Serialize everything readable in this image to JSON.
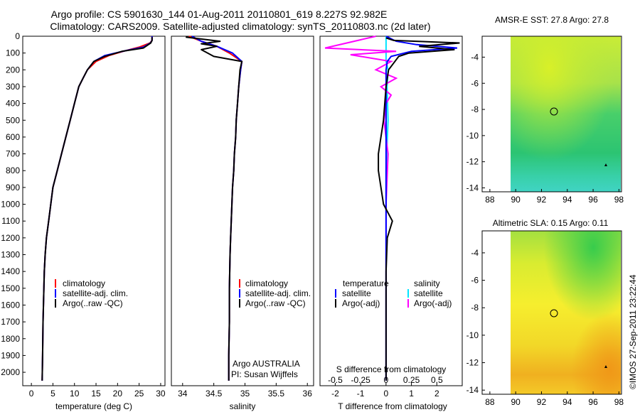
{
  "title": {
    "line1": "Argo profile: CS 5901630_144 01-Aug-2011 20110801_619 8.227S 92.982E",
    "line2": "Climatology: CARS2009. Satellite-adjusted climatology: synTS_20110803.nc (2d later)"
  },
  "footer_stamp": "©IMOS 27-Sep-2011 23:22:44",
  "colors": {
    "climatology": "#ff0000",
    "satellite": "#0000ff",
    "argo": "#000000",
    "s_satellite": "#00e5ff",
    "s_argo": "#ff00ff"
  },
  "depth_ticks": [
    "0",
    "100",
    "200",
    "300",
    "400",
    "500",
    "600",
    "700",
    "800",
    "900",
    "1000",
    "1100",
    "1200",
    "1300",
    "1400",
    "1500",
    "1600",
    "1700",
    "1800",
    "1900",
    "2000"
  ],
  "panel1": {
    "xlabel": "temperature (deg C)",
    "xticks": [
      "0",
      "5",
      "10",
      "15",
      "20",
      "25",
      "30"
    ],
    "legend": [
      "climatology",
      "satellite-adj. clim.",
      "Argo(..raw -QC)"
    ]
  },
  "panel2": {
    "xlabel": "salinity",
    "xticks": [
      "34",
      "34.5",
      "35",
      "35.5",
      "36"
    ],
    "legend": [
      "climatology",
      "satellite-adj. clim.",
      "Argo(..raw -QC)"
    ],
    "annotation1": "Argo AUSTRALIA",
    "annotation2": "PI: Susan Wijffels"
  },
  "panel3": {
    "xlabel": "T difference from climatology",
    "toplabel": "S difference from climatology",
    "xticks": [
      "-2",
      "-1",
      "0",
      "1",
      "2"
    ],
    "sticks": [
      "-0.5",
      "-0.25",
      "0",
      "0.25",
      "0.5"
    ],
    "legend_head_t": "temperature",
    "legend_head_s": "salinity",
    "legend_t": [
      "satellite",
      "Argo(-adj)"
    ],
    "legend_s": [
      "satellite",
      "Argo(-adj)"
    ]
  },
  "map1": {
    "title": "AMSR-E SST: 27.8 Argo: 27.8",
    "yticks": [
      "-4",
      "-6",
      "-8",
      "-10",
      "-12",
      "-14"
    ],
    "xticks": [
      "88",
      "90",
      "92",
      "94",
      "96",
      "98"
    ]
  },
  "map2": {
    "title": "Altimetric SLA: 0.15 Argo: 0.11",
    "yticks": [
      "-4",
      "-6",
      "-8",
      "-10",
      "-12",
      "-14"
    ],
    "xticks": [
      "88",
      "90",
      "92",
      "94",
      "96",
      "98"
    ]
  },
  "chart_data": [
    {
      "type": "line",
      "xlabel": "temperature (deg C)",
      "ylabel": "",
      "xlim": [
        -2,
        31
      ],
      "ylim": [
        2080,
        0
      ],
      "series": [
        {
          "name": "climatology",
          "x": [
            28,
            28,
            27.5,
            25,
            22,
            18,
            15,
            13,
            12,
            11,
            10,
            9,
            8,
            7,
            6,
            5,
            4.5,
            4,
            3.5,
            3.2,
            3,
            2.8,
            2.7,
            2.6,
            2.5
          ],
          "y": [
            0,
            25,
            40,
            65,
            85,
            115,
            150,
            200,
            250,
            300,
            400,
            500,
            600,
            700,
            800,
            900,
            1000,
            1100,
            1200,
            1300,
            1400,
            1600,
            1700,
            1900,
            2050
          ]
        },
        {
          "name": "satellite-adj. clim.",
          "x": [
            28,
            28,
            27.6,
            26,
            22,
            17,
            14.5,
            13,
            12,
            11,
            10,
            9,
            8,
            7,
            6,
            5,
            4.5,
            4,
            3.5,
            3.2,
            3,
            2.8,
            2.7,
            2.6,
            2.5
          ],
          "y": [
            0,
            25,
            40,
            65,
            85,
            115,
            150,
            200,
            250,
            300,
            400,
            500,
            600,
            700,
            800,
            900,
            1000,
            1100,
            1200,
            1300,
            1400,
            1600,
            1700,
            1900,
            2050
          ]
        },
        {
          "name": "Argo(..raw -QC)",
          "x": [
            28,
            28,
            27.7,
            26,
            21,
            17,
            14.5,
            13,
            12,
            11,
            10,
            9,
            8,
            7,
            6,
            5,
            4.5,
            4,
            3.5,
            3.2,
            3,
            2.8,
            2.7,
            2.6,
            2.5
          ],
          "y": [
            5,
            25,
            40,
            70,
            90,
            120,
            150,
            200,
            250,
            300,
            400,
            500,
            600,
            700,
            800,
            900,
            1000,
            1100,
            1200,
            1300,
            1400,
            1600,
            1700,
            1900,
            2050
          ]
        }
      ]
    },
    {
      "type": "line",
      "xlabel": "salinity",
      "ylabel": "",
      "xlim": [
        33.82,
        36.1
      ],
      "ylim": [
        2080,
        0
      ],
      "series": [
        {
          "name": "climatology",
          "x": [
            34.1,
            34.3,
            34.55,
            34.75,
            34.95,
            34.93,
            34.9,
            34.88,
            34.86,
            34.85,
            34.83,
            34.82,
            34.8,
            34.79,
            34.78,
            34.77,
            34.76,
            34.75,
            34.75,
            34.74,
            34.74
          ],
          "y": [
            0,
            30,
            60,
            100,
            150,
            200,
            300,
            400,
            500,
            600,
            700,
            800,
            900,
            1000,
            1100,
            1200,
            1300,
            1500,
            1700,
            1900,
            2050
          ]
        },
        {
          "name": "satellite-adj. clim.",
          "x": [
            34.15,
            34.3,
            34.55,
            34.8,
            34.95,
            34.93,
            34.9,
            34.88,
            34.86,
            34.85,
            34.83,
            34.82,
            34.8,
            34.79,
            34.78,
            34.77,
            34.76,
            34.75,
            34.75,
            34.74,
            34.74
          ],
          "y": [
            0,
            30,
            60,
            100,
            150,
            200,
            300,
            400,
            500,
            600,
            700,
            800,
            900,
            1000,
            1100,
            1200,
            1300,
            1500,
            1700,
            1900,
            2050
          ]
        },
        {
          "name": "Argo(..raw -QC)",
          "x": [
            34.05,
            34.6,
            34.3,
            34.55,
            34.3,
            34.5,
            34.95,
            34.92,
            34.9,
            34.88,
            34.86,
            34.85,
            34.83,
            34.82,
            34.8,
            34.79,
            34.78,
            34.77,
            34.76,
            34.75,
            34.75,
            34.74,
            34.74
          ],
          "y": [
            5,
            30,
            45,
            60,
            80,
            120,
            150,
            200,
            300,
            400,
            500,
            600,
            700,
            800,
            900,
            1000,
            1100,
            1200,
            1300,
            1500,
            1700,
            1900,
            2050
          ]
        }
      ]
    },
    {
      "type": "line",
      "xlabel": "T difference from climatology",
      "ylabel": "",
      "xlim": [
        -2.6,
        3.0
      ],
      "ylim": [
        2080,
        0
      ],
      "series": [
        {
          "name": "temperature satellite",
          "x": [
            0,
            0.4,
            1.2,
            2.8,
            1.0,
            0.2,
            0.05,
            0,
            0,
            0,
            0,
            0,
            0,
            0,
            0,
            0,
            0
          ],
          "y": [
            0,
            30,
            50,
            70,
            90,
            120,
            150,
            200,
            300,
            500,
            700,
            900,
            1100,
            1300,
            1500,
            1800,
            2050
          ]
        },
        {
          "name": "temperature Argo(-adj)",
          "x": [
            0,
            0.3,
            2.9,
            1.3,
            2.7,
            0.9,
            0.5,
            0.3,
            0.1,
            0,
            -0.05,
            -0.1,
            -0.2,
            -0.3,
            -0.3,
            -0.2,
            -0.1,
            0.25,
            0.05,
            0,
            0,
            0
          ],
          "y": [
            10,
            25,
            40,
            60,
            80,
            100,
            120,
            160,
            200,
            300,
            400,
            500,
            600,
            700,
            800,
            900,
            1000,
            1100,
            1200,
            1400,
            1800,
            2050
          ]
        }
      ]
    },
    {
      "type": "line",
      "xlabel": "S difference from climatology",
      "ylabel": "",
      "xlim": [
        -0.65,
        0.75
      ],
      "ylim": [
        2080,
        0
      ],
      "series": [
        {
          "name": "salinity satellite",
          "x": [
            0,
            0,
            0,
            0,
            0.02,
            0.01,
            0.02,
            0,
            0,
            0,
            0,
            0
          ],
          "y": [
            0,
            50,
            100,
            150,
            200,
            300,
            500,
            800,
            1100,
            1400,
            1800,
            2050
          ]
        },
        {
          "name": "salinity Argo(-adj)",
          "x": [
            -0.1,
            -0.6,
            0.1,
            -0.35,
            0.05,
            -0.1,
            0.1,
            -0.05,
            0.05,
            0,
            -0.02,
            0.02,
            0,
            0,
            0
          ],
          "y": [
            0,
            70,
            90,
            110,
            150,
            200,
            250,
            300,
            350,
            400,
            500,
            700,
            1000,
            1500,
            2050
          ]
        }
      ]
    }
  ]
}
